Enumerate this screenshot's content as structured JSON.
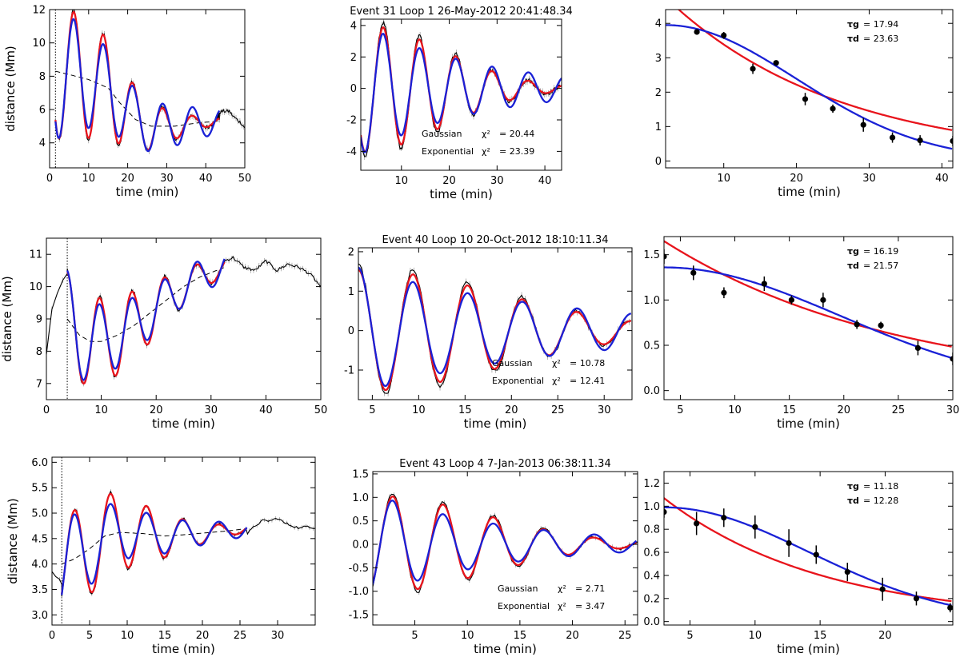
{
  "colors": {
    "gaussian": "#e8141c",
    "exponential": "#1a21d6",
    "data": "#000000",
    "background_trend": "#000000"
  },
  "chart_data": [
    {
      "type": "line",
      "row": 0,
      "col": 0,
      "title": "",
      "xlabel": "time (min)",
      "ylabel": "distance (Mm)",
      "xlim": [
        0,
        50
      ],
      "ylim": [
        2.5,
        12
      ],
      "xticks": [
        "0",
        "10",
        "20",
        "30",
        "40",
        "50"
      ],
      "yticks": [
        "4",
        "6",
        "8",
        "10",
        "12"
      ],
      "t0": 1.5,
      "fit_range": [
        1.5,
        43.5
      ],
      "data_range": [
        0,
        50
      ],
      "trend": [
        [
          1.5,
          8.3
        ],
        [
          5,
          8.1
        ],
        [
          10,
          7.8
        ],
        [
          15,
          7.3
        ],
        [
          18,
          6.4
        ],
        [
          22,
          5.4
        ],
        [
          26,
          5.0
        ],
        [
          32,
          5.0
        ],
        [
          38,
          5.2
        ],
        [
          43,
          5.3
        ]
      ],
      "osc": {
        "amp": 4.1,
        "period": 7.6,
        "tau_g": 17.94,
        "tau_d": 23.63,
        "peak": 6.2
      },
      "noise": 0.25,
      "tail": [
        [
          43,
          5.8
        ],
        [
          44.5,
          5.9
        ],
        [
          46,
          5.9
        ],
        [
          47,
          5.6
        ],
        [
          48,
          5.4
        ],
        [
          49,
          5.2
        ],
        [
          50,
          4.9
        ]
      ]
    },
    {
      "type": "line",
      "row": 0,
      "col": 1,
      "title": "Event 31   Loop 1    26-May-2012 20:41:48.34",
      "xlabel": "time (min)",
      "ylabel": "",
      "xlim": [
        1.5,
        43.5
      ],
      "ylim": [
        -5.2,
        4.4
      ],
      "xticks": [
        "10",
        "20",
        "30",
        "40"
      ],
      "yticks": [
        "-4",
        "-2",
        "0",
        "2",
        "4"
      ],
      "osc": {
        "amp": 4.2,
        "period": 7.6,
        "tau_g": 17.94,
        "tau_d": 23.63,
        "peak": 6.2
      },
      "noise": 0.25,
      "annotations": [
        {
          "name": "Gaussian",
          "chi_label": "χ²",
          "value": "= 20.44"
        },
        {
          "name": "Exponential",
          "chi_label": "χ²",
          "value": "= 23.39"
        }
      ]
    },
    {
      "type": "scatter",
      "row": 0,
      "col": 2,
      "title": "",
      "xlabel": "time (min)",
      "ylabel": "",
      "xlim": [
        2,
        41.5
      ],
      "ylim": [
        -0.2,
        4.4
      ],
      "xticks": [
        "10",
        "20",
        "30",
        "40"
      ],
      "yticks": [
        "0",
        "1",
        "2",
        "3",
        "4"
      ],
      "points": [
        [
          2,
          4.75,
          0.15
        ],
        [
          6.3,
          3.75,
          0.05
        ],
        [
          10,
          3.65,
          0.1
        ],
        [
          14,
          2.68,
          0.15
        ],
        [
          17.2,
          2.85,
          0.05
        ],
        [
          21.2,
          1.8,
          0.18
        ],
        [
          25,
          1.52,
          0.12
        ],
        [
          29.2,
          1.05,
          0.2
        ],
        [
          33.2,
          0.68,
          0.15
        ],
        [
          37,
          0.6,
          0.15
        ],
        [
          41.5,
          0.58,
          0.15
        ]
      ],
      "tau_labels": [
        {
          "symbol": "τg",
          "value": "= 17.94"
        },
        {
          "symbol": "τd",
          "value": "= 23.63"
        }
      ],
      "fit": {
        "tau_g": 17.94,
        "tau_d": 23.63,
        "A0": 3.95,
        "B0": 4.75
      }
    },
    {
      "type": "line",
      "row": 1,
      "col": 0,
      "title": "",
      "xlabel": "time (min)",
      "ylabel": "distance (Mm)",
      "xlim": [
        0,
        50
      ],
      "ylim": [
        6.5,
        11.5
      ],
      "xticks": [
        "0",
        "10",
        "20",
        "30",
        "40",
        "50"
      ],
      "yticks": [
        "7",
        "8",
        "9",
        "10",
        "11"
      ],
      "t0": 3.8,
      "fit_range": [
        3.8,
        32.5
      ],
      "data_range": [
        0,
        50
      ],
      "trend": [
        [
          3.8,
          9.0
        ],
        [
          6,
          8.5
        ],
        [
          8,
          8.3
        ],
        [
          10,
          8.3
        ],
        [
          13,
          8.5
        ],
        [
          16,
          8.8
        ],
        [
          19,
          9.2
        ],
        [
          22,
          9.6
        ],
        [
          25,
          10.0
        ],
        [
          28,
          10.3
        ],
        [
          32.5,
          10.6
        ]
      ],
      "osc": {
        "amp": 1.5,
        "period": 5.9,
        "tau_g": 16.19,
        "tau_d": 21.57,
        "peak": 3.8
      },
      "noise": 0.12,
      "head": [
        [
          0,
          7.9
        ],
        [
          0.5,
          8.6
        ],
        [
          1,
          9.3
        ],
        [
          2,
          9.8
        ],
        [
          3,
          10.2
        ],
        [
          3.8,
          10.4
        ]
      ],
      "tail": [
        [
          32.5,
          10.8
        ],
        [
          34,
          10.9
        ],
        [
          36,
          10.6
        ],
        [
          38,
          10.5
        ],
        [
          40,
          10.8
        ],
        [
          42,
          10.5
        ],
        [
          44,
          10.7
        ],
        [
          46,
          10.6
        ],
        [
          48,
          10.4
        ],
        [
          50,
          10.0
        ]
      ]
    },
    {
      "type": "line",
      "row": 1,
      "col": 1,
      "title": "Event 40   Loop 10   20-Oct-2012 18:10:11.34",
      "xlabel": "time (min)",
      "ylabel": "",
      "xlim": [
        3.5,
        33
      ],
      "ylim": [
        -1.75,
        2.1
      ],
      "xticks": [
        "5",
        "10",
        "15",
        "20",
        "25",
        "30"
      ],
      "yticks": [
        "-1",
        "0",
        "1",
        "2"
      ],
      "osc": {
        "amp": 1.6,
        "period": 5.9,
        "tau_g": 16.19,
        "tau_d": 21.57,
        "peak": 3.5
      },
      "noise": 0.1,
      "annotations": [
        {
          "name": "Gaussian",
          "chi_label": "χ²",
          "value": "= 10.78"
        },
        {
          "name": "Exponential",
          "chi_label": "χ²",
          "value": "= 12.41"
        }
      ]
    },
    {
      "type": "scatter",
      "row": 1,
      "col": 2,
      "title": "",
      "xlabel": "time (min)",
      "ylabel": "",
      "xlim": [
        3.5,
        30
      ],
      "ylim": [
        -0.1,
        1.7
      ],
      "xticks": [
        "5",
        "10",
        "15",
        "20",
        "25",
        "30"
      ],
      "yticks": [
        "0.0",
        "0.5",
        "1.0",
        "1.5"
      ],
      "points": [
        [
          3.5,
          1.48,
          0.08
        ],
        [
          6.2,
          1.3,
          0.08
        ],
        [
          9,
          1.08,
          0.06
        ],
        [
          12.7,
          1.18,
          0.08
        ],
        [
          15.2,
          1.0,
          0.05
        ],
        [
          18.1,
          1.0,
          0.08
        ],
        [
          21.2,
          0.73,
          0.05
        ],
        [
          23.4,
          0.72,
          0.04
        ],
        [
          26.8,
          0.47,
          0.08
        ],
        [
          30,
          0.35,
          0.07
        ]
      ],
      "tau_labels": [
        {
          "symbol": "τg",
          "value": "= 16.19"
        },
        {
          "symbol": "τd",
          "value": "= 21.57"
        }
      ],
      "fit": {
        "tau_g": 16.19,
        "tau_d": 21.57,
        "A0": 1.36,
        "B0": 1.65
      }
    },
    {
      "type": "line",
      "row": 2,
      "col": 0,
      "title": "",
      "xlabel": "time (min)",
      "ylabel": "distance (Mm)",
      "xlim": [
        0,
        35
      ],
      "ylim": [
        2.8,
        6.1
      ],
      "xticks": [
        "0",
        "5",
        "10",
        "15",
        "20",
        "25",
        "30"
      ],
      "yticks": [
        "3.0",
        "3.5",
        "4.0",
        "4.5",
        "5.0",
        "5.5",
        "6.0"
      ],
      "t0": 1.3,
      "fit_range": [
        1.3,
        26
      ],
      "data_range": [
        0,
        35
      ],
      "trend": [
        [
          1.3,
          4.0
        ],
        [
          3,
          4.1
        ],
        [
          5,
          4.3
        ],
        [
          7,
          4.55
        ],
        [
          9,
          4.62
        ],
        [
          12,
          4.6
        ],
        [
          15,
          4.55
        ],
        [
          18,
          4.58
        ],
        [
          21,
          4.62
        ],
        [
          24,
          4.66
        ],
        [
          26,
          4.7
        ]
      ],
      "osc": {
        "amp": 1.0,
        "period": 4.8,
        "tau_g": 11.18,
        "tau_d": 12.28,
        "peak": 3.0
      },
      "noise": 0.06,
      "head": [
        [
          0,
          3.85
        ],
        [
          0.5,
          3.75
        ],
        [
          1,
          3.7
        ],
        [
          1.3,
          3.6
        ]
      ],
      "tail": [
        [
          26,
          4.6
        ],
        [
          27,
          4.75
        ],
        [
          28,
          4.85
        ],
        [
          29,
          4.85
        ],
        [
          30,
          4.9
        ],
        [
          31,
          4.8
        ],
        [
          32,
          4.75
        ],
        [
          33,
          4.7
        ],
        [
          34,
          4.75
        ],
        [
          35,
          4.7
        ]
      ]
    },
    {
      "type": "line",
      "row": 2,
      "col": 1,
      "title": "Event 43   Loop 4     7-Jan-2013 06:38:11.34",
      "xlabel": "time (min)",
      "ylabel": "",
      "xlim": [
        1,
        26.2
      ],
      "ylim": [
        -1.72,
        1.55
      ],
      "xticks": [
        "5",
        "10",
        "15",
        "20",
        "25"
      ],
      "yticks": [
        "-1.5",
        "-1.0",
        "-0.5",
        "0.0",
        "0.5",
        "1.0",
        "1.5"
      ],
      "osc": {
        "amp": 1.08,
        "period": 4.8,
        "tau_g": 11.18,
        "tau_d": 12.28,
        "peak": 2.9
      },
      "noise": 0.06,
      "annotations": [
        {
          "name": "Gaussian",
          "chi_label": "χ²",
          "value": "=  2.71"
        },
        {
          "name": "Exponential",
          "chi_label": "χ²",
          "value": "=  3.47"
        }
      ]
    },
    {
      "type": "scatter",
      "row": 2,
      "col": 2,
      "title": "",
      "xlabel": "time (min)",
      "ylabel": "",
      "xlim": [
        3,
        25.2
      ],
      "ylim": [
        -0.03,
        1.3
      ],
      "xticks": [
        "5",
        "10",
        "15",
        "20"
      ],
      "yticks": [
        "0.0",
        "0.2",
        "0.4",
        "0.6",
        "0.8",
        "1.0",
        "1.2"
      ],
      "points": [
        [
          3,
          0.95,
          0.05
        ],
        [
          5.5,
          0.85,
          0.1
        ],
        [
          7.6,
          0.9,
          0.08
        ],
        [
          10,
          0.82,
          0.1
        ],
        [
          12.6,
          0.68,
          0.12
        ],
        [
          14.7,
          0.58,
          0.08
        ],
        [
          17.1,
          0.43,
          0.08
        ],
        [
          19.8,
          0.28,
          0.1
        ],
        [
          22.4,
          0.2,
          0.06
        ],
        [
          25,
          0.12,
          0.04
        ]
      ],
      "tau_labels": [
        {
          "symbol": "τg",
          "value": "= 11.18"
        },
        {
          "symbol": "τd",
          "value": "= 12.28"
        }
      ],
      "fit": {
        "tau_g": 11.18,
        "tau_d": 12.28,
        "A0": 0.99,
        "B0": 1.07
      }
    }
  ]
}
